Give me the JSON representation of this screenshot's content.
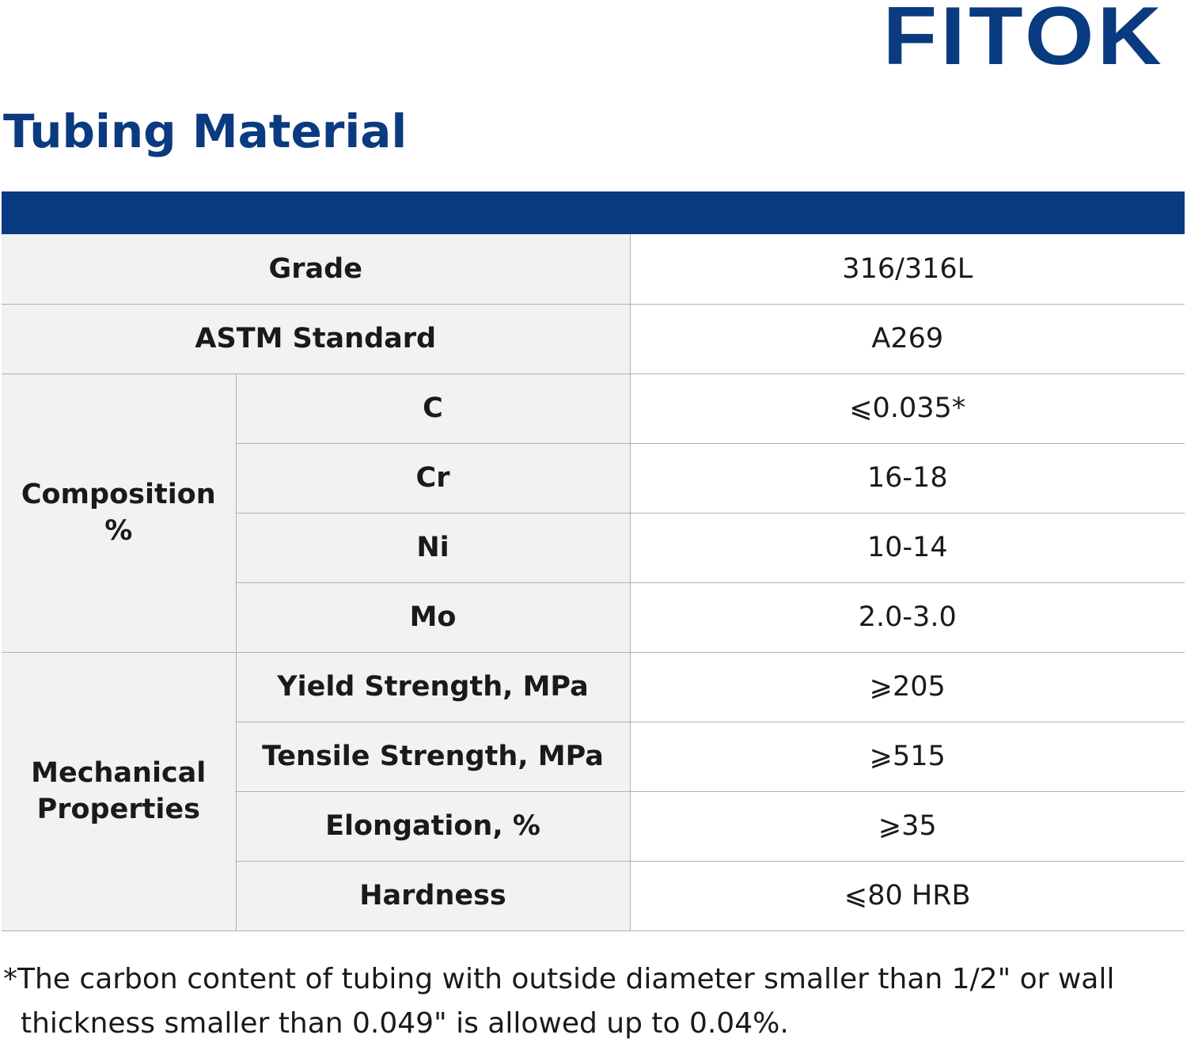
{
  "brand": {
    "logo_text": "FITOK",
    "color": "#0a3a80"
  },
  "title": "Tubing Material",
  "table": {
    "grade_label": "Grade",
    "grade_value": "316/316L",
    "astm_label": "ASTM Standard",
    "astm_value": "A269",
    "composition": {
      "group_label_line1": "Composition",
      "group_label_line2": "%",
      "rows": [
        {
          "label": "C",
          "value": "⩽0.035*"
        },
        {
          "label": "Cr",
          "value": "16-18"
        },
        {
          "label": "Ni",
          "value": "10-14"
        },
        {
          "label": "Mo",
          "value": "2.0-3.0"
        }
      ]
    },
    "mechanical": {
      "group_label_line1": "Mechanical",
      "group_label_line2": "Properties",
      "rows": [
        {
          "label": "Yield Strength, MPa",
          "value": "⩾205"
        },
        {
          "label": "Tensile Strength, MPa",
          "value": "⩾515"
        },
        {
          "label": "Elongation, %",
          "value": "⩾35"
        },
        {
          "label": "Hardness",
          "value": "⩽80 HRB"
        }
      ]
    }
  },
  "footnote": {
    "line1": "*The carbon content of tubing with outside diameter smaller than 1/2\" or wall",
    "line2": "thickness smaller than 0.049\" is allowed up to 0.04%."
  }
}
